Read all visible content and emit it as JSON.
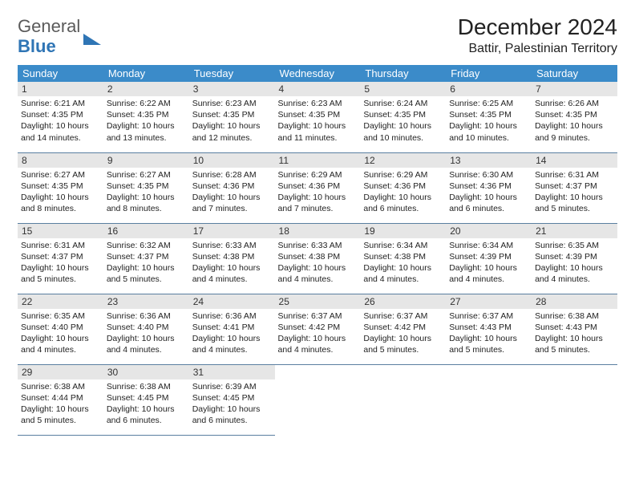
{
  "logo": {
    "line1": "General",
    "line2": "Blue"
  },
  "title": "December 2024",
  "location": "Battir, Palestinian Territory",
  "columns": [
    "Sunday",
    "Monday",
    "Tuesday",
    "Wednesday",
    "Thursday",
    "Friday",
    "Saturday"
  ],
  "colors": {
    "header_bg": "#3b8bc9",
    "header_fg": "#ffffff",
    "daynum_bg": "#e6e6e6",
    "rule": "#5a7fa0",
    "logo_blue": "#2f75b5",
    "logo_gray": "#5a5a5a",
    "text": "#222222",
    "page_bg": "#ffffff"
  },
  "days": [
    {
      "n": 1,
      "sunrise": "6:21 AM",
      "sunset": "4:35 PM",
      "daylight": "10 hours and 14 minutes."
    },
    {
      "n": 2,
      "sunrise": "6:22 AM",
      "sunset": "4:35 PM",
      "daylight": "10 hours and 13 minutes."
    },
    {
      "n": 3,
      "sunrise": "6:23 AM",
      "sunset": "4:35 PM",
      "daylight": "10 hours and 12 minutes."
    },
    {
      "n": 4,
      "sunrise": "6:23 AM",
      "sunset": "4:35 PM",
      "daylight": "10 hours and 11 minutes."
    },
    {
      "n": 5,
      "sunrise": "6:24 AM",
      "sunset": "4:35 PM",
      "daylight": "10 hours and 10 minutes."
    },
    {
      "n": 6,
      "sunrise": "6:25 AM",
      "sunset": "4:35 PM",
      "daylight": "10 hours and 10 minutes."
    },
    {
      "n": 7,
      "sunrise": "6:26 AM",
      "sunset": "4:35 PM",
      "daylight": "10 hours and 9 minutes."
    },
    {
      "n": 8,
      "sunrise": "6:27 AM",
      "sunset": "4:35 PM",
      "daylight": "10 hours and 8 minutes."
    },
    {
      "n": 9,
      "sunrise": "6:27 AM",
      "sunset": "4:35 PM",
      "daylight": "10 hours and 8 minutes."
    },
    {
      "n": 10,
      "sunrise": "6:28 AM",
      "sunset": "4:36 PM",
      "daylight": "10 hours and 7 minutes."
    },
    {
      "n": 11,
      "sunrise": "6:29 AM",
      "sunset": "4:36 PM",
      "daylight": "10 hours and 7 minutes."
    },
    {
      "n": 12,
      "sunrise": "6:29 AM",
      "sunset": "4:36 PM",
      "daylight": "10 hours and 6 minutes."
    },
    {
      "n": 13,
      "sunrise": "6:30 AM",
      "sunset": "4:36 PM",
      "daylight": "10 hours and 6 minutes."
    },
    {
      "n": 14,
      "sunrise": "6:31 AM",
      "sunset": "4:37 PM",
      "daylight": "10 hours and 5 minutes."
    },
    {
      "n": 15,
      "sunrise": "6:31 AM",
      "sunset": "4:37 PM",
      "daylight": "10 hours and 5 minutes."
    },
    {
      "n": 16,
      "sunrise": "6:32 AM",
      "sunset": "4:37 PM",
      "daylight": "10 hours and 5 minutes."
    },
    {
      "n": 17,
      "sunrise": "6:33 AM",
      "sunset": "4:38 PM",
      "daylight": "10 hours and 4 minutes."
    },
    {
      "n": 18,
      "sunrise": "6:33 AM",
      "sunset": "4:38 PM",
      "daylight": "10 hours and 4 minutes."
    },
    {
      "n": 19,
      "sunrise": "6:34 AM",
      "sunset": "4:38 PM",
      "daylight": "10 hours and 4 minutes."
    },
    {
      "n": 20,
      "sunrise": "6:34 AM",
      "sunset": "4:39 PM",
      "daylight": "10 hours and 4 minutes."
    },
    {
      "n": 21,
      "sunrise": "6:35 AM",
      "sunset": "4:39 PM",
      "daylight": "10 hours and 4 minutes."
    },
    {
      "n": 22,
      "sunrise": "6:35 AM",
      "sunset": "4:40 PM",
      "daylight": "10 hours and 4 minutes."
    },
    {
      "n": 23,
      "sunrise": "6:36 AM",
      "sunset": "4:40 PM",
      "daylight": "10 hours and 4 minutes."
    },
    {
      "n": 24,
      "sunrise": "6:36 AM",
      "sunset": "4:41 PM",
      "daylight": "10 hours and 4 minutes."
    },
    {
      "n": 25,
      "sunrise": "6:37 AM",
      "sunset": "4:42 PM",
      "daylight": "10 hours and 4 minutes."
    },
    {
      "n": 26,
      "sunrise": "6:37 AM",
      "sunset": "4:42 PM",
      "daylight": "10 hours and 5 minutes."
    },
    {
      "n": 27,
      "sunrise": "6:37 AM",
      "sunset": "4:43 PM",
      "daylight": "10 hours and 5 minutes."
    },
    {
      "n": 28,
      "sunrise": "6:38 AM",
      "sunset": "4:43 PM",
      "daylight": "10 hours and 5 minutes."
    },
    {
      "n": 29,
      "sunrise": "6:38 AM",
      "sunset": "4:44 PM",
      "daylight": "10 hours and 5 minutes."
    },
    {
      "n": 30,
      "sunrise": "6:38 AM",
      "sunset": "4:45 PM",
      "daylight": "10 hours and 6 minutes."
    },
    {
      "n": 31,
      "sunrise": "6:39 AM",
      "sunset": "4:45 PM",
      "daylight": "10 hours and 6 minutes."
    }
  ],
  "labels": {
    "sunrise": "Sunrise:",
    "sunset": "Sunset:",
    "daylight": "Daylight:"
  }
}
